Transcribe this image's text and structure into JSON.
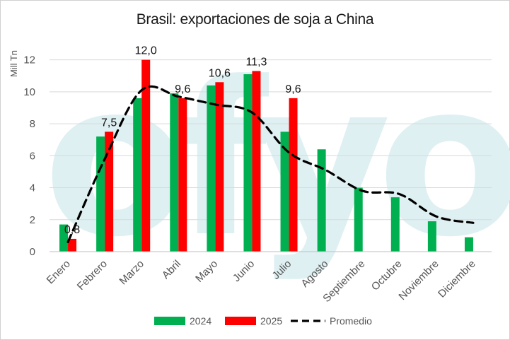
{
  "chart_data": {
    "type": "bar",
    "title": "Brasil: exportaciones de soja a China",
    "ylabel": "Mill Tn",
    "xlabel": "",
    "ylim": [
      0,
      13
    ],
    "yticks": [
      0,
      2,
      4,
      6,
      8,
      10,
      12
    ],
    "grid": true,
    "legend_position": "bottom",
    "categories": [
      "Enero",
      "Febrero",
      "Marzo",
      "Abril",
      "Mayo",
      "Junio",
      "Julio",
      "Agosto",
      "Septiembre",
      "Octubre",
      "Noviembre",
      "Diciembre"
    ],
    "series": [
      {
        "name": "2024",
        "type": "bar",
        "color": "#00b050",
        "values": [
          1.7,
          7.2,
          9.6,
          9.9,
          10.4,
          11.1,
          7.5,
          6.4,
          4.0,
          3.4,
          1.9,
          0.9
        ]
      },
      {
        "name": "2025",
        "type": "bar",
        "color": "#ff0000",
        "values": [
          0.8,
          7.5,
          12.0,
          9.6,
          10.6,
          11.3,
          9.6,
          null,
          null,
          null,
          null,
          null
        ],
        "data_labels": [
          "0,8",
          "7,5",
          "12,0",
          "9,6",
          "10,6",
          "11,3",
          "9,6"
        ]
      },
      {
        "name": "Promedio",
        "type": "line",
        "style": "dashed",
        "color": "#000000",
        "values": [
          0.6,
          5.8,
          10.1,
          9.7,
          9.2,
          8.7,
          6.2,
          5.1,
          3.8,
          3.6,
          2.2,
          1.8
        ]
      }
    ],
    "watermark": "ofyo",
    "watermark_color": "#dff0f3"
  }
}
